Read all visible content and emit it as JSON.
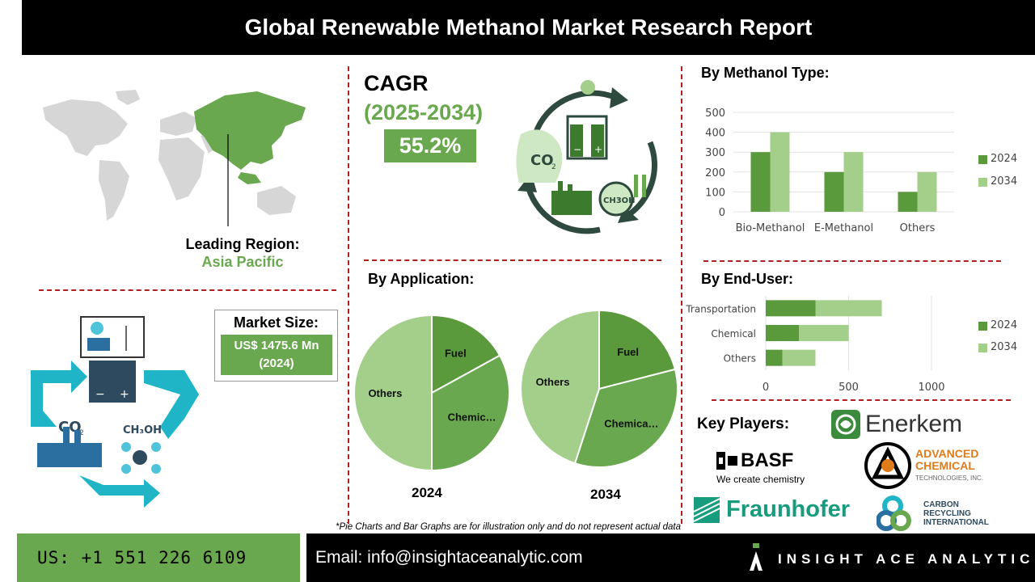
{
  "header": {
    "title": "Global Renewable Methanol Market Research Report"
  },
  "region": {
    "label": "Leading Region:",
    "value": "Asia Pacific"
  },
  "cagr": {
    "label": "CAGR",
    "period": "(2025-2034)",
    "value": "55.2%"
  },
  "market_size": {
    "label": "Market Size:",
    "value_line1": "US$ 1475.6 Mn",
    "value_line2": "(2024)"
  },
  "icons": {
    "cycle_icon": "co2-to-methanol-cycle-icon",
    "flow_icon": "renewable-energy-flow-icon",
    "world_map": "world-map-icon"
  },
  "colors": {
    "dark_green": "#5b9a3c",
    "light_green": "#a3cf8a",
    "accent_green": "#6aa84f",
    "divider_red": "#b02020"
  },
  "chart_data": [
    {
      "type": "bar",
      "title": "By Methanol Type:",
      "categories": [
        "Bio-Methanol",
        "E-Methanol",
        "Others"
      ],
      "series": [
        {
          "name": "2024",
          "values": [
            300,
            200,
            100
          ]
        },
        {
          "name": "2034",
          "values": [
            400,
            300,
            200
          ]
        }
      ],
      "ylim": [
        0,
        500
      ],
      "yticks": [
        "0",
        "100",
        "200",
        "300",
        "400",
        "500"
      ],
      "legend": "right",
      "grid": true
    },
    {
      "type": "pie",
      "title": "By Application:",
      "subtitle": "2024",
      "slices": [
        {
          "label": "Fuel",
          "value": 17
        },
        {
          "label": "Chemic…",
          "value": 33
        },
        {
          "label": "Others",
          "value": 50
        }
      ]
    },
    {
      "type": "pie",
      "subtitle": "2034",
      "slices": [
        {
          "label": "Fuel",
          "value": 21
        },
        {
          "label": "Chemica…",
          "value": 34
        },
        {
          "label": "Others",
          "value": 45
        }
      ]
    },
    {
      "type": "bar",
      "orientation": "horizontal",
      "stacked": true,
      "title": "By End-User:",
      "categories": [
        "Transportation",
        "Chemical",
        "Others"
      ],
      "series": [
        {
          "name": "2024",
          "values": [
            300,
            200,
            100
          ]
        },
        {
          "name": "2034",
          "values": [
            400,
            300,
            200
          ]
        }
      ],
      "xlim": [
        0,
        1000
      ],
      "xticks": [
        "0",
        "500",
        "1000"
      ],
      "legend": "right",
      "grid": true
    }
  ],
  "key_players": {
    "label": "Key Players:",
    "companies": [
      {
        "name": "Enerkem"
      },
      {
        "name": "BASF",
        "tagline": "We create chemistry"
      },
      {
        "name": "ADVANCED",
        "name2": "CHEMICAL",
        "name3": "TECHNOLOGIES, INC."
      },
      {
        "name": "Fraunhofer"
      },
      {
        "name": "CARBON",
        "name2": "RECYCLING",
        "name3": "INTERNATIONAL"
      }
    ]
  },
  "disclaimer": "*Pie Charts and Bar Graphs are for illustration only and do not represent actual data",
  "footer": {
    "phone": "US: +1 551 226 6109",
    "email": "Email: info@insightaceanalytic.com",
    "brand": "INSIGHT ACE ANALYTIC"
  }
}
